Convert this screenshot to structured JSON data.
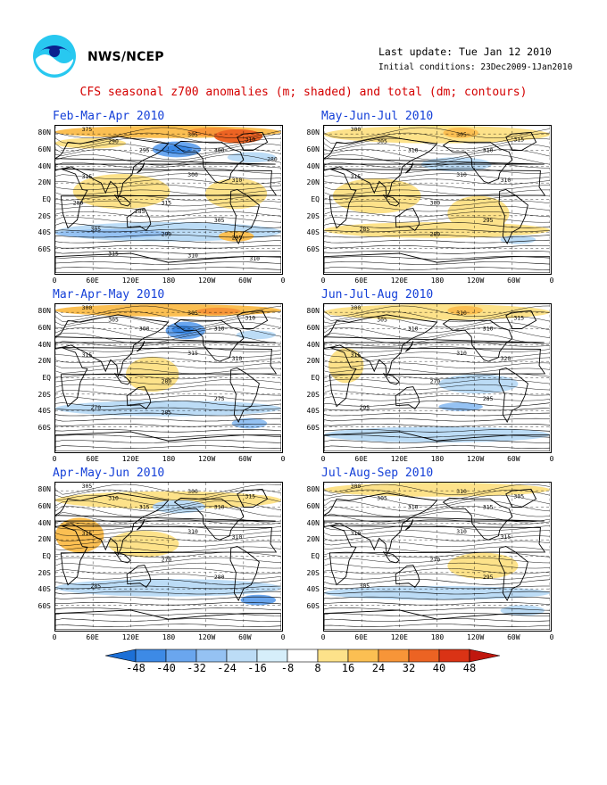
{
  "header": {
    "agency": "NWS/NCEP",
    "last_update": "Last update: Tue Jan 12 2010",
    "initial_conditions": "Initial conditions: 23Dec2009-1Jan2010",
    "title": "CFS seasonal z700 anomalies (m; shaded) and total (dm; contours)",
    "logo_icon": "noaa-logo-icon"
  },
  "axes": {
    "lat_labels": [
      "80N",
      "60N",
      "40N",
      "20N",
      "EQ",
      "20S",
      "40S",
      "60S"
    ],
    "lon_labels": [
      "0",
      "60E",
      "120E",
      "180",
      "120W",
      "60W",
      "0"
    ]
  },
  "panels": [
    {
      "title": "Feb-Mar-Apr 2010",
      "contour_labels": [
        "375",
        "290",
        "295",
        "305",
        "300",
        "310",
        "315",
        "300",
        "310",
        "315",
        "305",
        "305",
        "290",
        "295",
        "315",
        "310",
        "310",
        "285",
        "280",
        "280"
      ]
    },
    {
      "title": "May-Jun-Jul 2010",
      "contour_labels": [
        "300",
        "305",
        "310",
        "305",
        "310",
        "315",
        "315",
        "310",
        "310",
        "300",
        "295",
        "285",
        "280"
      ]
    },
    {
      "title": "Mar-Apr-May 2010",
      "contour_labels": [
        "300",
        "305",
        "300",
        "305",
        "310",
        "310",
        "315",
        "315",
        "310",
        "280",
        "275",
        "270",
        "285"
      ]
    },
    {
      "title": "Jun-Jul-Aug 2010",
      "contour_labels": [
        "300",
        "305",
        "310",
        "310",
        "310",
        "315",
        "315",
        "310",
        "320",
        "270",
        "285",
        "295"
      ]
    },
    {
      "title": "Apr-May-Jun 2010",
      "contour_labels": [
        "305",
        "310",
        "315",
        "300",
        "310",
        "315",
        "315",
        "310",
        "310",
        "270",
        "280",
        "285"
      ]
    },
    {
      "title": "Jul-Aug-Sep 2010",
      "contour_labels": [
        "300",
        "305",
        "310",
        "310",
        "315",
        "305",
        "310",
        "310",
        "315",
        "270",
        "295",
        "305"
      ]
    }
  ],
  "colorbar": {
    "labels": [
      "-48",
      "-40",
      "-32",
      "-24",
      "-16",
      "-8",
      "8",
      "16",
      "24",
      "32",
      "40",
      "48"
    ],
    "colors": [
      "#1c6fd6",
      "#3d8ae6",
      "#6aa6ee",
      "#95c2f3",
      "#bcdcf6",
      "#d6eefa",
      "#ffffff",
      "#fde28a",
      "#fbbf52",
      "#f79538",
      "#ec6323",
      "#da3315",
      "#c0170e"
    ]
  },
  "colors": {
    "title": "#d40000",
    "panel_title": "#1540d8"
  }
}
